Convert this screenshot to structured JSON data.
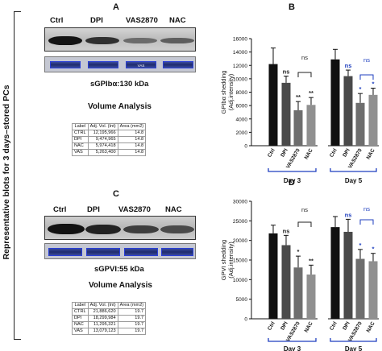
{
  "side_label": "Representative blots for 3 days–stored PCs",
  "panels": {
    "a": {
      "letter": "A"
    },
    "b": {
      "letter": "B"
    },
    "c": {
      "letter": "C"
    },
    "d": {
      "letter": "D"
    }
  },
  "blot_a": {
    "lanes": [
      "Ctrl",
      "DPI",
      "VAS2870",
      "NAC"
    ],
    "stain_labels": [
      "",
      "",
      "VAS",
      ""
    ],
    "target": "sGPIbα:130 kDa",
    "volume_title": "Volume Analysis",
    "table": {
      "headers": [
        "Label",
        "Adj. Vol. (Int)",
        "Area (mm2)"
      ],
      "rows": [
        [
          "CTRL",
          "12,195,966",
          "14.8"
        ],
        [
          "DPI",
          "9,474,965",
          "14.8"
        ],
        [
          "NAC",
          "5,974,418",
          "14.8"
        ],
        [
          "VAS",
          "5,263,400",
          "14.8"
        ]
      ]
    }
  },
  "blot_c": {
    "lanes": [
      "Ctrl",
      "DPI",
      "VAS2870",
      "NAC"
    ],
    "stain_labels": [
      "",
      "",
      "",
      ""
    ],
    "target": "sGPVI:55 kDa",
    "volume_title": "Volume Analysis",
    "table": {
      "headers": [
        "Label",
        "Adj. Vol. (Int)",
        "Area (mm2)"
      ],
      "rows": [
        [
          "CTRL",
          "21,886,620",
          "19.7"
        ],
        [
          "DPI",
          "18,299,984",
          "19.7"
        ],
        [
          "NAC",
          "11,295,321",
          "19.7"
        ],
        [
          "VAS",
          "13,079,123",
          "19.7"
        ]
      ]
    }
  },
  "chart_data": [
    {
      "panel": "B",
      "type": "bar",
      "ylabel": "GPIbα shedding\n(Adj.intensity)",
      "ylim": [
        0,
        16000
      ],
      "yticks": [
        0,
        2000,
        4000,
        6000,
        8000,
        10000,
        12000,
        14000,
        16000
      ],
      "categories": [
        "Ctrl",
        "DPI",
        "VAS2870",
        "NAC",
        "Ctrl",
        "DPI",
        "VAS2870",
        "NAC"
      ],
      "groups": [
        "Day 3",
        "Day 5"
      ],
      "values": [
        12200,
        9400,
        5300,
        6100,
        12900,
        10400,
        6400,
        7600
      ],
      "errors": [
        2400,
        1000,
        1300,
        1100,
        1500,
        900,
        1400,
        1000
      ],
      "annotations": [
        "",
        "ns",
        "**",
        "**",
        "",
        "ns",
        "*",
        "*"
      ],
      "annotation_colors": [
        "#222222",
        "#222222",
        "#222222",
        "#222222",
        "#222222",
        "#1f3fbf",
        "#1f3fbf",
        "#1f3fbf"
      ],
      "brackets": [
        {
          "label": "ns",
          "color": "#222222"
        },
        {
          "label": "ns",
          "color": "#1f3fbf"
        }
      ],
      "bar_colors": [
        "#111111",
        "#4a4a4a",
        "#6e6e6e",
        "#909090",
        "#111111",
        "#4a4a4a",
        "#6e6e6e",
        "#909090"
      ],
      "group_bracket_color": "#1f3fbf"
    },
    {
      "panel": "D",
      "type": "bar",
      "ylabel": "GPVI shedding\n(Adj.intensity)",
      "ylim": [
        0,
        30000
      ],
      "yticks": [
        0,
        5000,
        10000,
        15000,
        20000,
        25000,
        30000
      ],
      "categories": [
        "Ctrl",
        "DPI",
        "VAS2870",
        "NAC",
        "Ctrl",
        "DPI",
        "VAS2870",
        "NAC"
      ],
      "groups": [
        "Day 3",
        "Day 5"
      ],
      "values": [
        21800,
        18800,
        13100,
        11300,
        23400,
        22200,
        15300,
        14700
      ],
      "errors": [
        2100,
        2500,
        2900,
        2400,
        2700,
        3200,
        2400,
        2000
      ],
      "annotations": [
        "",
        "ns",
        "*",
        "**",
        "",
        "ns",
        "*",
        "*"
      ],
      "annotation_colors": [
        "#222222",
        "#222222",
        "#222222",
        "#222222",
        "#222222",
        "#1f3fbf",
        "#1f3fbf",
        "#1f3fbf"
      ],
      "brackets": [
        {
          "label": "ns",
          "color": "#222222"
        },
        {
          "label": "ns",
          "color": "#1f3fbf"
        }
      ],
      "bar_colors": [
        "#111111",
        "#4a4a4a",
        "#6e6e6e",
        "#909090",
        "#111111",
        "#4a4a4a",
        "#6e6e6e",
        "#909090"
      ],
      "group_bracket_color": "#1f3fbf"
    }
  ]
}
